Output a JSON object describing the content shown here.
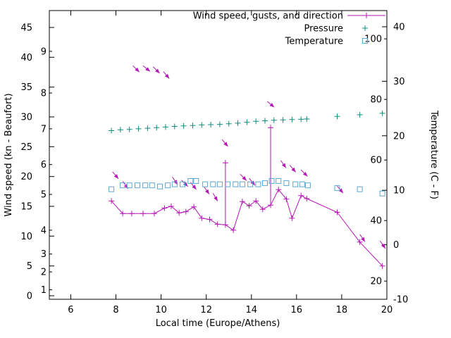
{
  "chart_data": {
    "type": "line",
    "title": "",
    "xlabel": "Local time (Europe/Athens)",
    "ylabel": "Wind speed (kn - Beaufort)",
    "y2label": "Temperature (C - F)",
    "grid": false,
    "legend_position": "top-right-inside",
    "x_axis": {
      "range": [
        5.05,
        20
      ],
      "ticks": [
        6,
        8,
        10,
        12,
        14,
        16,
        18,
        20
      ]
    },
    "y_left": {
      "units": "kn",
      "ylim": [
        0,
        45
      ],
      "ticks": [
        0,
        5,
        10,
        15,
        20,
        25,
        30,
        35,
        40,
        45
      ],
      "beaufort_ticks": [
        {
          "label": "1",
          "kn": 1
        },
        {
          "label": "2",
          "kn": 4
        },
        {
          "label": "3",
          "kn": 7
        },
        {
          "label": "4",
          "kn": 11
        },
        {
          "label": "5",
          "kn": 17
        },
        {
          "label": "6",
          "kn": 22
        },
        {
          "label": "7",
          "kn": 28
        },
        {
          "label": "8",
          "kn": 34
        },
        {
          "label": "9",
          "kn": 41
        }
      ]
    },
    "y_right": {
      "units_primary": "C",
      "units_secondary": "F",
      "ylim_c": [
        -10,
        40
      ],
      "ticks_c": [
        -10,
        0,
        10,
        20,
        30,
        40
      ],
      "ticks_f": [
        20,
        40,
        60,
        80,
        100
      ]
    },
    "series": [
      {
        "id": "wind",
        "name": "Wind speed, gusts, and direction",
        "type": "line+points+vectors",
        "marker": "plus",
        "color": "#b517b5",
        "axis": "left",
        "points": [
          [
            7.8,
            15.9
          ],
          [
            8.3,
            13.8
          ],
          [
            8.7,
            13.8
          ],
          [
            9.2,
            13.8
          ],
          [
            9.7,
            13.8
          ],
          [
            10.15,
            14.7
          ],
          [
            10.45,
            15.0
          ],
          [
            10.8,
            13.9
          ],
          [
            11.1,
            14.1
          ],
          [
            11.45,
            14.9
          ],
          [
            11.8,
            13.0
          ],
          [
            12.15,
            12.8
          ],
          [
            12.5,
            12.0
          ],
          [
            12.85,
            11.9
          ],
          [
            13.2,
            11.0
          ],
          [
            13.6,
            15.8
          ],
          [
            13.9,
            15.1
          ],
          [
            14.2,
            15.9
          ],
          [
            14.5,
            14.5
          ],
          [
            14.85,
            15.2
          ],
          [
            15.2,
            17.8
          ],
          [
            15.55,
            16.2
          ],
          [
            15.8,
            13.0
          ],
          [
            16.2,
            16.8
          ],
          [
            16.45,
            16.3
          ],
          [
            17.8,
            14.0
          ],
          [
            18.8,
            9.0
          ],
          [
            19.8,
            5.0
          ]
        ],
        "gusts": [
          [
            12.85,
            11.9,
            22.3
          ],
          [
            14.85,
            15.2,
            28.2
          ]
        ],
        "direction_arrows": [
          [
            7.85,
            20.8,
            50
          ],
          [
            8.3,
            19.2,
            55
          ],
          [
            8.75,
            38.6,
            45
          ],
          [
            9.2,
            38.6,
            40
          ],
          [
            9.65,
            38.4,
            45
          ],
          [
            10.1,
            37.6,
            50
          ],
          [
            10.5,
            19.9,
            55
          ],
          [
            10.9,
            19.4,
            45
          ],
          [
            11.3,
            19.0,
            50
          ],
          [
            11.9,
            18.3,
            55
          ],
          [
            12.3,
            17.2,
            60
          ],
          [
            12.7,
            26.2,
            50
          ],
          [
            13.5,
            20.4,
            45
          ],
          [
            13.9,
            19.7,
            50
          ],
          [
            14.7,
            32.6,
            40
          ],
          [
            15.3,
            22.7,
            55
          ],
          [
            15.7,
            21.9,
            50
          ],
          [
            16.2,
            21.1,
            45
          ],
          [
            17.8,
            18.4,
            50
          ],
          [
            18.8,
            10.3,
            55
          ],
          [
            19.7,
            9.2,
            55
          ]
        ]
      },
      {
        "id": "pressure",
        "name": "Pressure",
        "type": "points",
        "marker": "plus",
        "color": "#0e8a7c",
        "axis": "left",
        "points": [
          [
            7.8,
            27.7
          ],
          [
            8.2,
            27.85
          ],
          [
            8.6,
            27.9
          ],
          [
            9.0,
            28.0
          ],
          [
            9.4,
            28.1
          ],
          [
            9.8,
            28.2
          ],
          [
            10.2,
            28.3
          ],
          [
            10.6,
            28.4
          ],
          [
            11.0,
            28.5
          ],
          [
            11.4,
            28.55
          ],
          [
            11.8,
            28.65
          ],
          [
            12.2,
            28.7
          ],
          [
            12.6,
            28.75
          ],
          [
            13.0,
            28.85
          ],
          [
            13.4,
            28.95
          ],
          [
            13.8,
            29.1
          ],
          [
            14.2,
            29.25
          ],
          [
            14.6,
            29.35
          ],
          [
            15.0,
            29.45
          ],
          [
            15.4,
            29.5
          ],
          [
            15.8,
            29.55
          ],
          [
            16.2,
            29.6
          ],
          [
            16.45,
            29.65
          ],
          [
            17.8,
            30.1
          ],
          [
            18.8,
            30.35
          ],
          [
            19.8,
            30.6
          ]
        ]
      },
      {
        "id": "temperature",
        "name": "Temperature",
        "type": "points",
        "marker": "open-square",
        "color": "#59a8d5",
        "axis": "right",
        "points": [
          [
            7.8,
            10.2
          ],
          [
            8.3,
            10.9
          ],
          [
            8.6,
            10.9
          ],
          [
            8.95,
            10.9
          ],
          [
            9.3,
            10.9
          ],
          [
            9.6,
            10.9
          ],
          [
            9.95,
            10.7
          ],
          [
            10.3,
            10.9
          ],
          [
            10.6,
            11.1
          ],
          [
            10.95,
            11.1
          ],
          [
            11.3,
            11.7
          ],
          [
            11.55,
            11.7
          ],
          [
            11.95,
            11.1
          ],
          [
            12.3,
            11.1
          ],
          [
            12.6,
            11.1
          ],
          [
            12.95,
            11.1
          ],
          [
            13.3,
            11.1
          ],
          [
            13.6,
            11.1
          ],
          [
            13.95,
            11.1
          ],
          [
            14.3,
            11.1
          ],
          [
            14.6,
            11.3
          ],
          [
            14.9,
            11.7
          ],
          [
            15.2,
            11.7
          ],
          [
            15.55,
            11.3
          ],
          [
            15.95,
            11.1
          ],
          [
            16.25,
            11.1
          ],
          [
            16.5,
            10.9
          ],
          [
            17.8,
            10.4
          ],
          [
            18.8,
            10.2
          ],
          [
            19.8,
            9.4
          ]
        ]
      }
    ]
  }
}
